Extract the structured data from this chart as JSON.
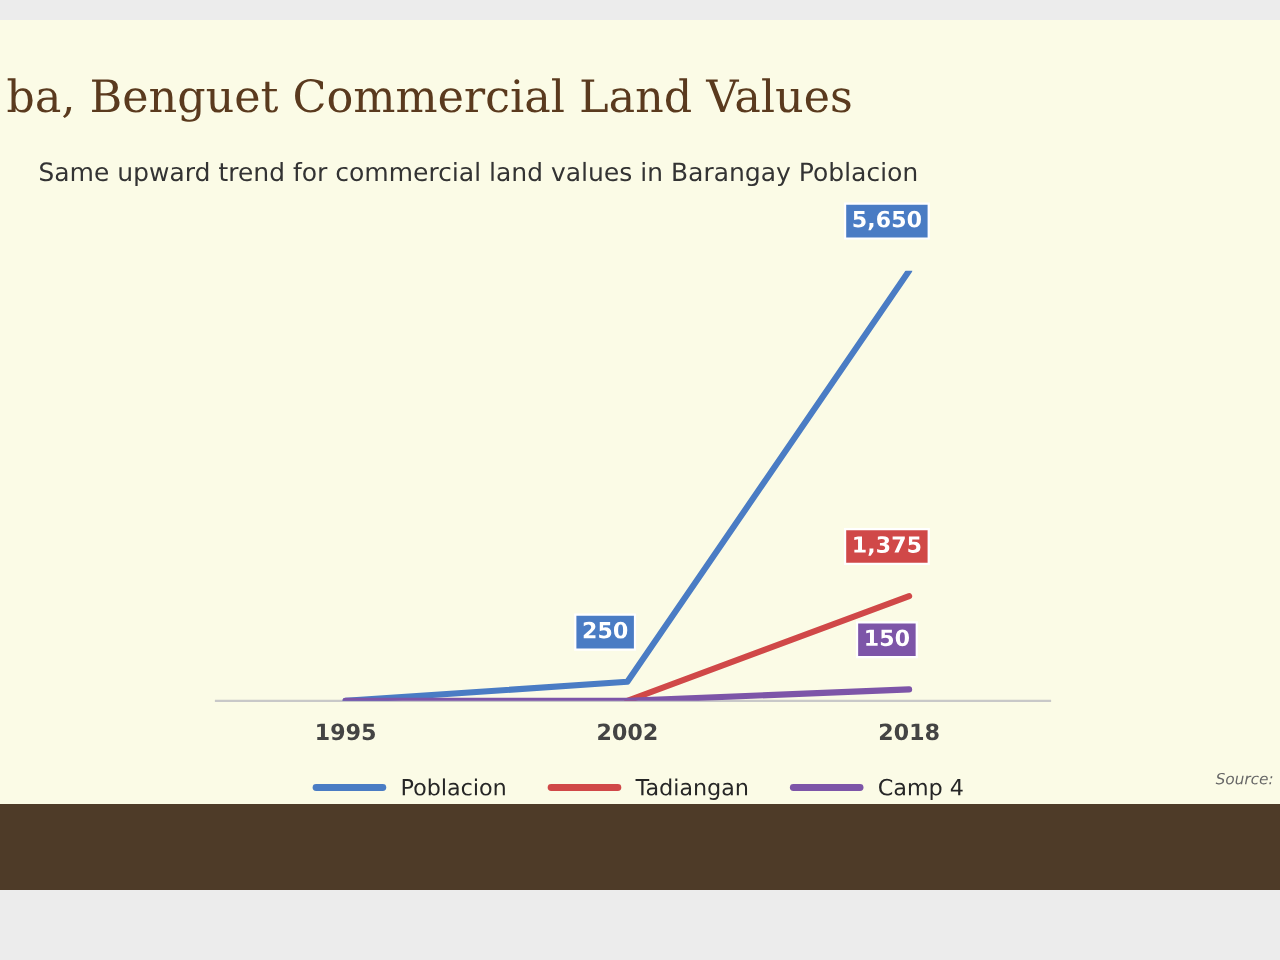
{
  "chart_data": {
    "type": "line",
    "title": "ba, Benguet Commercial Land Values",
    "subtitle": "Same upward trend for commercial land values in Barangay Poblacion",
    "categories": [
      "1995",
      "2002",
      "2018"
    ],
    "series": [
      {
        "name": "Poblacion",
        "color": "#4a7cc4",
        "values": [
          0,
          250,
          5650
        ],
        "value_labels": [
          null,
          "250",
          "5,650"
        ]
      },
      {
        "name": "Tadiangan",
        "color": "#d04848",
        "values": [
          null,
          0,
          1375
        ],
        "value_labels": [
          null,
          null,
          "1,375"
        ]
      },
      {
        "name": "Camp 4",
        "color": "#7d55a8",
        "values": [
          0,
          0,
          150
        ],
        "value_labels": [
          null,
          null,
          "150"
        ]
      }
    ],
    "legend": "bottom",
    "grid": false,
    "marker": "none",
    "line_style": "solid",
    "annotations": [
      "Source:"
    ]
  }
}
